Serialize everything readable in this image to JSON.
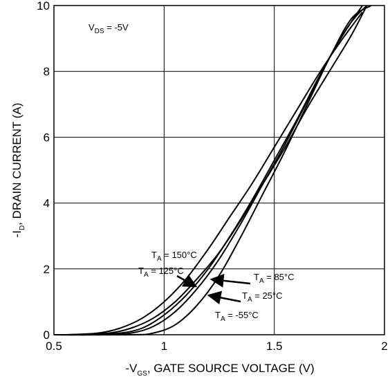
{
  "chart_data": {
    "type": "line",
    "xlabel": {
      "prefix": "-V",
      "sub": "GS",
      "suffix": ", GATE SOURCE VOLTAGE (V)"
    },
    "ylabel": {
      "prefix": "-I",
      "sub": "D",
      "suffix": ", DRAIN CURRENT (A)"
    },
    "xlim": [
      0.5,
      2.0
    ],
    "ylim": [
      0,
      10
    ],
    "x_ticks": [
      "0.5",
      "1",
      "1.5",
      "2"
    ],
    "y_ticks": [
      "0",
      "2",
      "4",
      "6",
      "8",
      "10"
    ],
    "grid": true,
    "annotation": {
      "prefix": "V",
      "sub": "DS",
      "suffix": " = -5V"
    },
    "series": [
      {
        "name": "T_A = 150°C",
        "label_prefix": "T",
        "label_sub": "A",
        "label_suffix": " = 150°C",
        "x": [
          0.55,
          0.7,
          0.8,
          0.9,
          1.0,
          1.1,
          1.2,
          1.3,
          1.4,
          1.5,
          1.6,
          1.7,
          1.8,
          1.9
        ],
        "y": [
          0.0,
          0.05,
          0.2,
          0.5,
          1.0,
          1.7,
          2.6,
          3.6,
          4.6,
          5.7,
          6.8,
          7.9,
          8.9,
          9.8
        ]
      },
      {
        "name": "T_A = 125°C",
        "label_prefix": "T",
        "label_sub": "A",
        "label_suffix": " = 125°C",
        "x": [
          0.6,
          0.75,
          0.85,
          0.95,
          1.05,
          1.15,
          1.25,
          1.35,
          1.45,
          1.55,
          1.65,
          1.75,
          1.85,
          1.92
        ],
        "y": [
          0.0,
          0.05,
          0.2,
          0.5,
          1.0,
          1.7,
          2.5,
          3.5,
          4.6,
          5.7,
          6.9,
          8.0,
          9.1,
          10.0
        ]
      },
      {
        "name": "T_A = 85°C",
        "label_prefix": "T",
        "label_sub": "A",
        "label_suffix": " = 85°C",
        "x": [
          0.65,
          0.8,
          0.9,
          1.0,
          1.1,
          1.2,
          1.3,
          1.4,
          1.5,
          1.6,
          1.7,
          1.8,
          1.9
        ],
        "y": [
          0.0,
          0.05,
          0.2,
          0.6,
          1.2,
          2.0,
          3.0,
          4.1,
          5.3,
          6.5,
          7.8,
          9.0,
          10.0
        ]
      },
      {
        "name": "T_A = 25°C",
        "label_prefix": "T",
        "label_sub": "A",
        "label_suffix": " = 25°C",
        "x": [
          0.72,
          0.85,
          0.95,
          1.05,
          1.15,
          1.25,
          1.35,
          1.45,
          1.55,
          1.65,
          1.75,
          1.85,
          1.92
        ],
        "y": [
          0.0,
          0.05,
          0.25,
          0.7,
          1.4,
          2.3,
          3.4,
          4.6,
          5.8,
          7.1,
          8.4,
          9.5,
          10.0
        ]
      },
      {
        "name": "T_A = -55°C",
        "label_prefix": "T",
        "label_sub": "A",
        "label_suffix": " = -55°C",
        "x": [
          0.85,
          0.95,
          1.05,
          1.15,
          1.25,
          1.35,
          1.45,
          1.55,
          1.65,
          1.75,
          1.85,
          1.94
        ],
        "y": [
          0.0,
          0.05,
          0.3,
          0.9,
          1.8,
          3.0,
          4.3,
          5.6,
          7.0,
          8.4,
          9.6,
          10.0
        ]
      }
    ]
  }
}
